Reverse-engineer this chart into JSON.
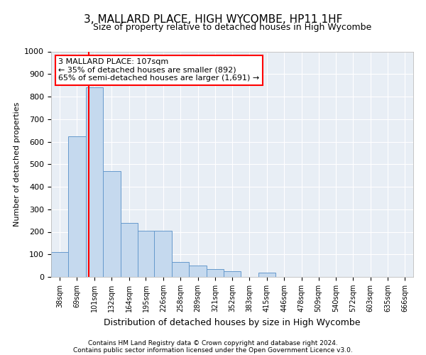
{
  "title": "3, MALLARD PLACE, HIGH WYCOMBE, HP11 1HF",
  "subtitle": "Size of property relative to detached houses in High Wycombe",
  "xlabel": "Distribution of detached houses by size in High Wycombe",
  "ylabel": "Number of detached properties",
  "footnote1": "Contains HM Land Registry data © Crown copyright and database right 2024.",
  "footnote2": "Contains public sector information licensed under the Open Government Licence v3.0.",
  "annotation_line1": "3 MALLARD PLACE: 107sqm",
  "annotation_line2": "← 35% of detached houses are smaller (892)",
  "annotation_line3": "65% of semi-detached houses are larger (1,691) →",
  "bar_color": "#c5d9ee",
  "bar_edge_color": "#6699cc",
  "background_color": "#e8eef5",
  "grid_color": "#ffffff",
  "red_line_x": 107,
  "categories": [
    "38sqm",
    "69sqm",
    "101sqm",
    "132sqm",
    "164sqm",
    "195sqm",
    "226sqm",
    "258sqm",
    "289sqm",
    "321sqm",
    "352sqm",
    "383sqm",
    "415sqm",
    "446sqm",
    "478sqm",
    "509sqm",
    "540sqm",
    "572sqm",
    "603sqm",
    "635sqm",
    "666sqm"
  ],
  "bin_edges": [
    38,
    69,
    101,
    132,
    164,
    195,
    226,
    258,
    289,
    321,
    352,
    383,
    415,
    446,
    478,
    509,
    540,
    572,
    603,
    635,
    666,
    697
  ],
  "values": [
    110,
    625,
    840,
    470,
    240,
    205,
    205,
    65,
    50,
    35,
    25,
    0,
    20,
    0,
    0,
    0,
    0,
    0,
    0,
    0,
    0
  ],
  "ylim": [
    0,
    1000
  ],
  "yticks": [
    0,
    100,
    200,
    300,
    400,
    500,
    600,
    700,
    800,
    900,
    1000
  ],
  "title_fontsize": 11,
  "subtitle_fontsize": 9,
  "ylabel_fontsize": 8,
  "xlabel_fontsize": 9,
  "footnote_fontsize": 6.5,
  "annotation_fontsize": 8,
  "tick_fontsize": 8,
  "xtick_fontsize": 7
}
